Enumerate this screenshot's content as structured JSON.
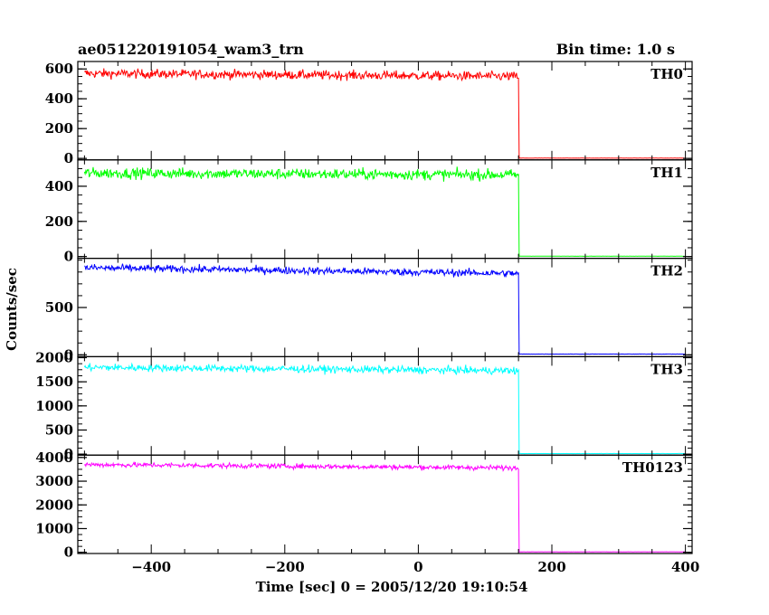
{
  "chart_data": {
    "type": "line",
    "title": "ae051220191054_wam3_trn",
    "subtitle": "Bin time: 1.0 s",
    "xlabel": "Time [sec] 0 = 2005/12/20 19:10:54",
    "ylabel": "Counts/sec",
    "xlim": [
      -510,
      410
    ],
    "xticks": [
      -400,
      -200,
      0,
      200,
      400
    ],
    "step_time": 151,
    "series_range": [
      -500,
      400
    ],
    "panels": [
      {
        "name": "TH0",
        "color": "#ff0000",
        "ylim": [
          -10,
          650
        ],
        "yticks": [
          0,
          200,
          400,
          600
        ],
        "level_start": 570,
        "level_end": 550,
        "noise": 22,
        "after": 2
      },
      {
        "name": "TH1",
        "color": "#00ff00",
        "ylim": [
          -10,
          550
        ],
        "yticks": [
          0,
          200,
          400
        ],
        "level_start": 475,
        "level_end": 465,
        "noise": 22,
        "after": 2
      },
      {
        "name": "TH2",
        "color": "#0000ff",
        "ylim": [
          -20,
          1020
        ],
        "yticks": [
          0,
          500
        ],
        "level_start": 920,
        "level_end": 860,
        "noise": 28,
        "after": 8
      },
      {
        "name": "TH3",
        "color": "#00ffff",
        "ylim": [
          -20,
          2020
        ],
        "yticks": [
          0,
          500,
          1000,
          1500,
          2000
        ],
        "level_start": 1800,
        "level_end": 1730,
        "noise": 55,
        "after": 12
      },
      {
        "name": "TH0123",
        "color": "#ff00ff",
        "ylim": [
          -50,
          4100
        ],
        "yticks": [
          0,
          1000,
          2000,
          3000,
          4000
        ],
        "level_start": 3700,
        "level_end": 3560,
        "noise": 75,
        "after": 20
      }
    ]
  }
}
